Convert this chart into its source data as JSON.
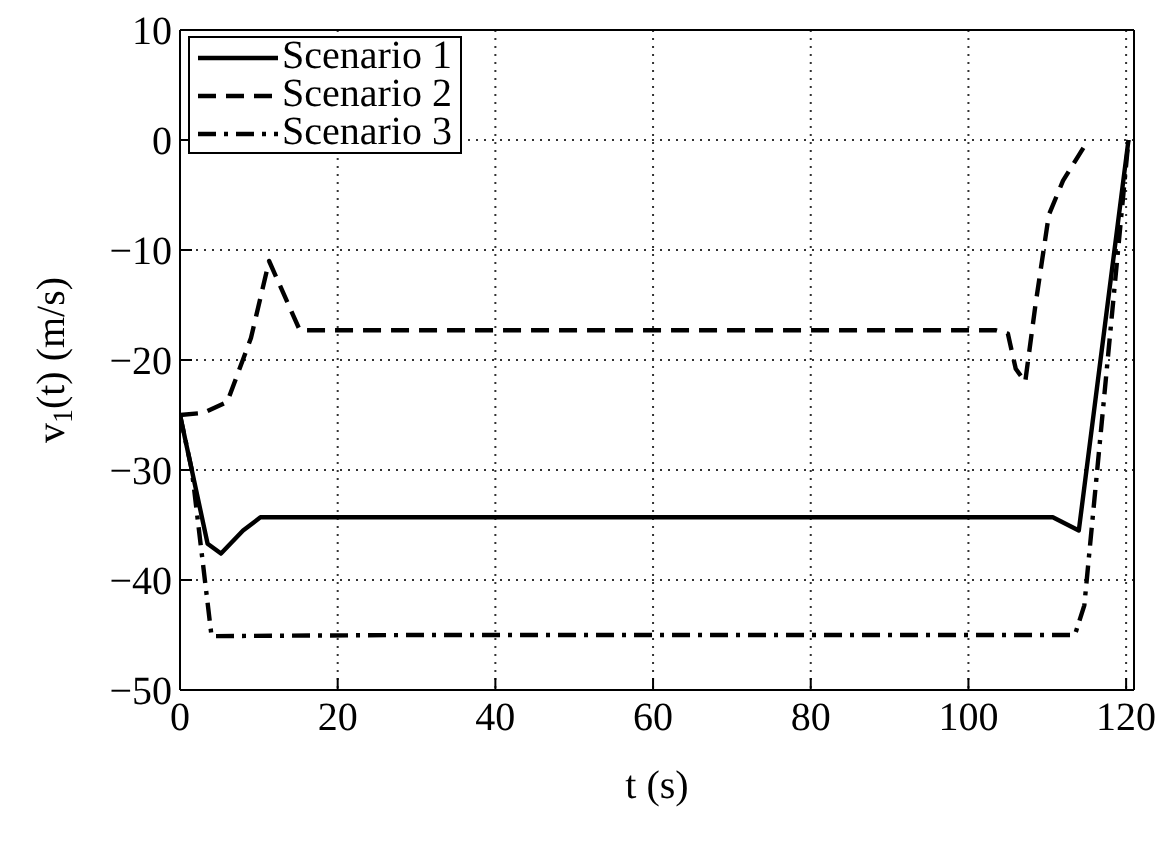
{
  "chart_data": {
    "type": "line",
    "xlabel": "t (s)",
    "ylabel": "v$_{1}$(t) (m/s)",
    "xlim": [
      0,
      121
    ],
    "xticks": [
      0,
      20,
      40,
      60,
      80,
      100,
      120
    ],
    "ylim": [
      -50,
      10
    ],
    "yticks": [
      -50,
      -40,
      -30,
      -20,
      -10,
      0,
      10
    ],
    "grid": true,
    "legend": "top left",
    "marker": "none",
    "series": [
      {
        "name": "Scenario 1",
        "color": "#000000",
        "line_style": "solid",
        "x": [
          0,
          3.5,
          5.2,
          8,
          10.2,
          30,
          60,
          90,
          110.7,
          114,
          120.3
        ],
        "values": [
          -25,
          -36.7,
          -37.6,
          -35.5,
          -34.3,
          -34.3,
          -34.3,
          -34.3,
          -34.3,
          -35.5,
          0
        ]
      },
      {
        "name": "Scenario 2",
        "color": "#000000",
        "line_style": "dashed",
        "x": [
          0,
          3,
          6,
          9,
          11.3,
          15.2,
          40,
          70,
          103.5,
          105,
          106,
          107.2,
          108.5,
          110.2,
          112,
          115.2
        ],
        "values": [
          -25,
          -24.8,
          -23.8,
          -18,
          -11,
          -17.3,
          -17.3,
          -17.3,
          -17.3,
          -17.6,
          -20.8,
          -22,
          -15,
          -6.8,
          -3.7,
          0
        ]
      },
      {
        "name": "Scenario 3",
        "color": "#000000",
        "line_style": "dashdot",
        "x": [
          0,
          1.5,
          4,
          30,
          60,
          90,
          113.5,
          114.7,
          117,
          120.3
        ],
        "values": [
          -25,
          -30,
          -45.1,
          -45,
          -45,
          -45,
          -45,
          -42.3,
          -25,
          0
        ]
      }
    ]
  }
}
